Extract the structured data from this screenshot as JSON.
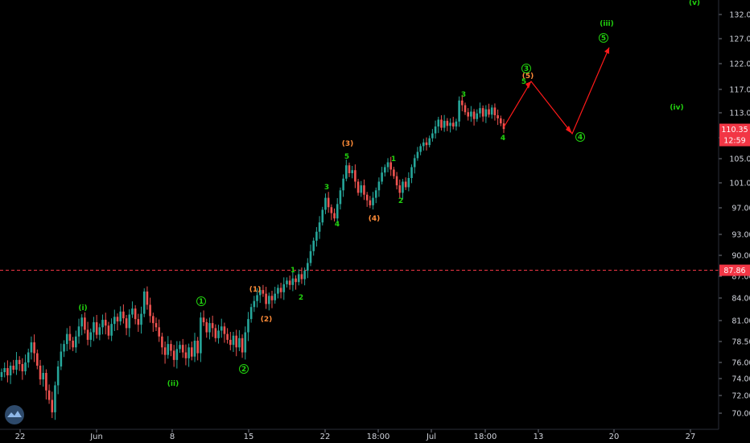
{
  "chart_data": {
    "type": "candlestick",
    "title": "",
    "xlabel": "",
    "ylabel": "",
    "y_ticks": [
      "132.00",
      "127.00",
      "122.00",
      "117.00",
      "113.00",
      "109.00",
      "105.00",
      "101.00",
      "97.00",
      "93.00",
      "90.00",
      "87.00",
      "84.00",
      "81.00",
      "78.50",
      "76.00",
      "74.00",
      "72.00",
      "70.00"
    ],
    "x_ticks": [
      "22",
      "Jun",
      "8",
      "15",
      "22",
      "18:00",
      "Jul",
      "18:00",
      "13",
      "20",
      "27"
    ],
    "current_price": {
      "value": "110.35",
      "countdown": "12:59",
      "color": "#f23645"
    },
    "reference_line": {
      "value": "87.86",
      "color": "#f23645"
    },
    "colors": {
      "up": "#26a69a",
      "down": "#ef5350",
      "wave_green": "#22d10f",
      "wave_orange": "#ff8c38",
      "projection": "#ff1a1a"
    },
    "wave_labels": [
      {
        "text": "(i)",
        "color": "green",
        "price": 85.2,
        "x_day": 7.0
      },
      {
        "text": "(ii)",
        "color": "green",
        "price": 73.6,
        "x_day": 13.0
      },
      {
        "text": "1",
        "color": "green",
        "price": 85.5,
        "x_day": 16.5,
        "circled": true
      },
      {
        "text": "2",
        "color": "green",
        "price": 75.1,
        "x_day": 19.5,
        "circled": true
      },
      {
        "text": "(1)",
        "color": "orange",
        "price": 86.2,
        "x_day": 20.3
      },
      {
        "text": "(2)",
        "color": "orange",
        "price": 81.4,
        "x_day": 21.2
      },
      {
        "text": "1",
        "color": "green",
        "price": 88.4,
        "x_day": 23.3
      },
      {
        "text": "2",
        "color": "green",
        "price": 85.4,
        "x_day": 23.8
      },
      {
        "text": "3",
        "color": "green",
        "price": 100.4,
        "x_day": 25.8
      },
      {
        "text": "4",
        "color": "green",
        "price": 95.7,
        "x_day": 26.7
      },
      {
        "text": "(3)",
        "color": "orange",
        "price": 107.7,
        "x_day": 27.5
      },
      {
        "text": "5",
        "color": "green",
        "price": 105.5,
        "x_day": 27.4
      },
      {
        "text": "(4)",
        "color": "orange",
        "price": 96.4,
        "x_day": 29.6
      },
      {
        "text": "1",
        "color": "green",
        "price": 105.2,
        "x_day": 31.2
      },
      {
        "text": "2",
        "color": "green",
        "price": 98.0,
        "x_day": 31.7
      },
      {
        "text": "3",
        "color": "green",
        "price": 115.7,
        "x_day": 36.7
      },
      {
        "text": "4",
        "color": "green",
        "price": 109.1,
        "x_day": 39.8
      },
      {
        "text": "(5)",
        "color": "orange",
        "price": 120.5,
        "x_day": 41.9
      },
      {
        "text": "5",
        "color": "green",
        "price": 119.6,
        "x_day": 41.5
      },
      {
        "text": "3",
        "color": "green",
        "price": 122.2,
        "x_day": 41.8,
        "circled": true
      },
      {
        "text": "4",
        "color": "green",
        "price": 109.2,
        "x_day": 46.0,
        "circled": true
      },
      {
        "text": "5",
        "color": "green",
        "price": 127.0,
        "x_day": 48.0,
        "circled": true
      },
      {
        "text": "(iii)",
        "color": "green",
        "price": 130.0,
        "x_day": 48.2
      },
      {
        "text": "(iv)",
        "color": "green",
        "price": 113.7,
        "x_day": 53.7
      },
      {
        "text": "(v)",
        "color": "green",
        "price": 134.5,
        "x_day": 55.1
      }
    ],
    "projection_path": [
      {
        "x_day": 40.0,
        "price": 110.3
      },
      {
        "x_day": 42.3,
        "price": 119.0
      },
      {
        "x_day": 45.3,
        "price": 109.5
      },
      {
        "x_day": 48.3,
        "price": 125.4
      }
    ],
    "candles_close": [
      74.8,
      75.3,
      74.4,
      75.6,
      75.1,
      76.3,
      75.8,
      74.9,
      76.0,
      77.2,
      78.4,
      77.1,
      75.6,
      73.9,
      74.7,
      72.6,
      71.5,
      70.1,
      73.2,
      75.5,
      77.3,
      78.2,
      79.4,
      78.6,
      77.8,
      79.1,
      80.3,
      81.4,
      79.9,
      78.7,
      79.6,
      80.8,
      79.3,
      80.2,
      81.1,
      80.4,
      79.2,
      80.6,
      81.5,
      80.9,
      82.2,
      81.3,
      80.1,
      81.8,
      82.6,
      81.2,
      80.5,
      81.9,
      84.9,
      83.1,
      81.6,
      80.7,
      80.2,
      79.1,
      77.8,
      76.9,
      78.2,
      77.4,
      76.3,
      77.6,
      78.1,
      77.2,
      76.5,
      77.8,
      76.7,
      78.6,
      77.1,
      81.4,
      80.8,
      79.6,
      80.7,
      80.1,
      78.9,
      79.8,
      80.3,
      79.4,
      78.7,
      78.1,
      79.2,
      77.8,
      78.9,
      77.2,
      79.6,
      81.2,
      82.8,
      83.6,
      84.4,
      85.1,
      84.6,
      83.2,
      84.3,
      83.7,
      84.6,
      85.4,
      84.8,
      85.9,
      86.4,
      85.8,
      86.7,
      86.2,
      87.3,
      86.6,
      87.8,
      88.9,
      90.6,
      92.1,
      93.4,
      94.8,
      96.7,
      98.6,
      97.1,
      96.2,
      95.4,
      97.6,
      99.8,
      101.7,
      103.9,
      102.6,
      103.1,
      101.2,
      99.4,
      100.6,
      99.1,
      98.2,
      97.4,
      98.6,
      99.8,
      101.2,
      102.7,
      103.6,
      104.4,
      103.2,
      102.1,
      100.6,
      99.4,
      101.2,
      100.3,
      101.8,
      103.6,
      105.1,
      106.3,
      107.4,
      108.1,
      107.6,
      108.9,
      109.7,
      110.8,
      111.9,
      110.6,
      111.7,
      110.9,
      111.4,
      110.8,
      111.6,
      115.1,
      114.3,
      113.1,
      112.4,
      113.2,
      112.0,
      112.9,
      113.8,
      112.4,
      113.6,
      112.7,
      113.9,
      112.6,
      112.1,
      111.3,
      110.4
    ]
  }
}
